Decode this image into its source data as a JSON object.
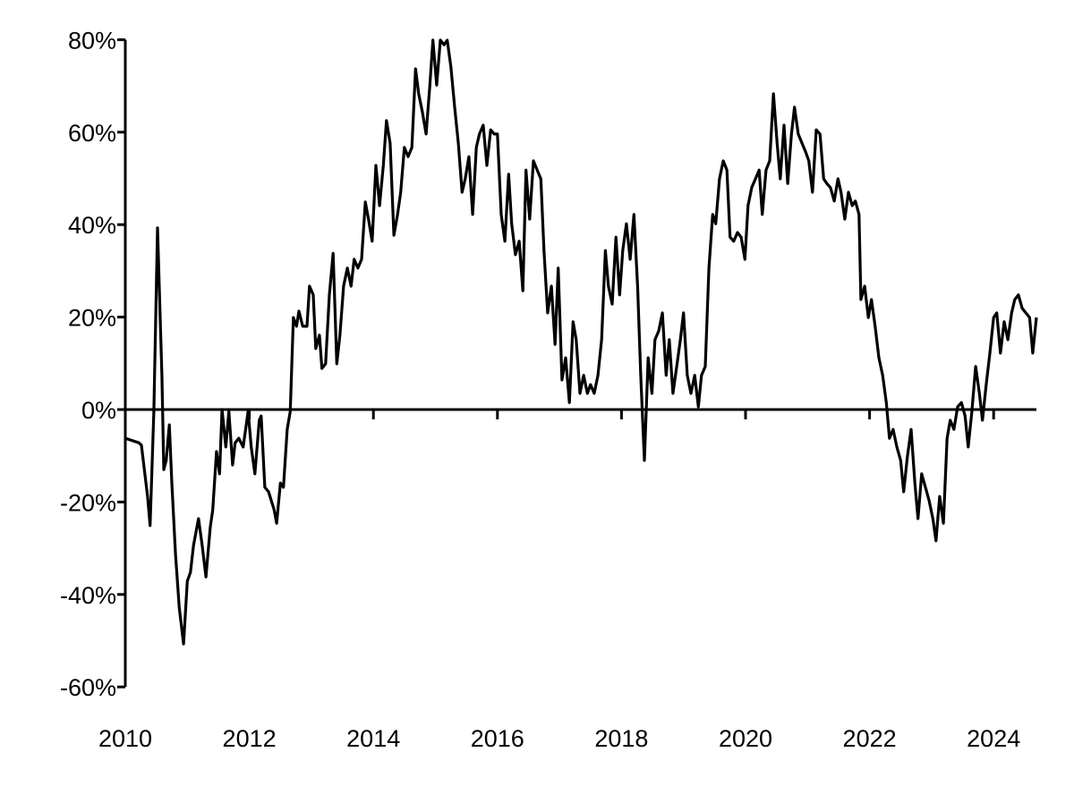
{
  "chart_data": {
    "type": "line",
    "title": "",
    "xlabel": "",
    "ylabel": "",
    "xlim": [
      2010,
      2024.7
    ],
    "ylim": [
      -60,
      80
    ],
    "grid": false,
    "legend": "none",
    "colors": {
      "line": "#000000",
      "axis": "#000000"
    },
    "y_ticks": [
      80,
      60,
      40,
      20,
      0,
      -20,
      -40,
      -60
    ],
    "y_tick_labels": [
      "80%",
      "60%",
      "40%",
      "20%",
      "0%",
      "-20%",
      "-40%",
      "-60%"
    ],
    "x_ticks": [
      2010,
      2012,
      2014,
      2016,
      2018,
      2020,
      2022,
      2024
    ],
    "x_tick_labels": [
      "2010",
      "2012",
      "2014",
      "2016",
      "2018",
      "2020",
      "2022",
      "2024"
    ],
    "series": [
      {
        "x": [
          2010.0,
          2010.22,
          2010.26,
          2010.36,
          2010.4,
          2010.46,
          2010.52,
          2010.59,
          2010.62,
          2010.66,
          2010.71,
          2010.75,
          2010.81,
          2010.87,
          2010.94,
          2011.0,
          2011.05,
          2011.1,
          2011.18,
          2011.24,
          2011.3,
          2011.37,
          2011.41,
          2011.47,
          2011.52,
          2011.56,
          2011.62,
          2011.67,
          2011.73,
          2011.77,
          2011.83,
          2011.9,
          2011.98,
          2012.03,
          2012.09,
          2012.16,
          2012.19,
          2012.25,
          2012.31,
          2012.4,
          2012.44,
          2012.5,
          2012.55,
          2012.61,
          2012.66,
          2012.71,
          2012.76,
          2012.8,
          2012.86,
          2012.93,
          2012.97,
          2013.03,
          2013.07,
          2013.13,
          2013.17,
          2013.23,
          2013.29,
          2013.35,
          2013.41,
          2013.46,
          2013.52,
          2013.58,
          2013.64,
          2013.69,
          2013.75,
          2013.81,
          2013.87,
          2013.92,
          2013.98,
          2014.04,
          2014.1,
          2014.16,
          2014.21,
          2014.27,
          2014.33,
          2014.39,
          2014.44,
          2014.5,
          2014.56,
          2014.62,
          2014.68,
          2014.73,
          2014.79,
          2014.85,
          2014.91,
          2014.96,
          2015.02,
          2015.08,
          2015.14,
          2015.19,
          2015.25,
          2015.31,
          2015.37,
          2015.43,
          2015.48,
          2015.54,
          2015.6,
          2015.66,
          2015.71,
          2015.77,
          2015.83,
          2015.89,
          2015.95,
          2016.0,
          2016.06,
          2016.12,
          2016.18,
          2016.23,
          2016.29,
          2016.35,
          2016.41,
          2016.46,
          2016.52,
          2016.58,
          2016.64,
          2016.7,
          2016.75,
          2016.81,
          2016.87,
          2016.93,
          2016.98,
          2017.04,
          2017.1,
          2017.16,
          2017.22,
          2017.27,
          2017.33,
          2017.39,
          2017.45,
          2017.5,
          2017.56,
          2017.62,
          2017.68,
          2017.74,
          2017.79,
          2017.85,
          2017.91,
          2017.97,
          2018.02,
          2018.08,
          2018.14,
          2018.2,
          2018.26,
          2018.31,
          2018.37,
          2018.43,
          2018.49,
          2018.54,
          2018.6,
          2018.66,
          2018.72,
          2018.77,
          2018.83,
          2018.89,
          2018.95,
          2019.0,
          2019.06,
          2019.12,
          2019.18,
          2019.24,
          2019.29,
          2019.35,
          2019.41,
          2019.47,
          2019.52,
          2019.58,
          2019.64,
          2019.7,
          2019.75,
          2019.81,
          2019.87,
          2019.93,
          2019.99,
          2020.04,
          2020.1,
          2020.16,
          2020.22,
          2020.27,
          2020.33,
          2020.39,
          2020.45,
          2020.51,
          2020.56,
          2020.62,
          2020.68,
          2020.74,
          2020.79,
          2020.85,
          2020.91,
          2020.97,
          2021.02,
          2021.08,
          2021.14,
          2021.2,
          2021.26,
          2021.31,
          2021.37,
          2021.43,
          2021.49,
          2021.54,
          2021.6,
          2021.66,
          2021.72,
          2021.77,
          2021.83,
          2021.86,
          2021.92,
          2021.98,
          2022.03,
          2022.09,
          2022.15,
          2022.21,
          2022.27,
          2022.32,
          2022.38,
          2022.44,
          2022.5,
          2022.55,
          2022.61,
          2022.67,
          2022.73,
          2022.78,
          2022.84,
          2022.9,
          2022.96,
          2023.02,
          2023.07,
          2023.13,
          2023.19,
          2023.25,
          2023.3,
          2023.36,
          2023.42,
          2023.48,
          2023.54,
          2023.59,
          2023.65,
          2023.71,
          2023.77,
          2023.82,
          2023.88,
          2023.94,
          2024.0,
          2024.05,
          2024.11,
          2024.17,
          2024.23,
          2024.29,
          2024.34,
          2024.4,
          2024.46,
          2024.52,
          2024.58,
          2024.63,
          2024.69
        ],
        "y": [
          -6.2,
          -7.2,
          -7.7,
          -18.8,
          -25.1,
          -0.4,
          39.3,
          7.4,
          -13.0,
          -11.0,
          -3.3,
          -15.9,
          -31.3,
          -42.9,
          -50.7,
          -37.1,
          -35.2,
          -29.4,
          -23.6,
          -29.4,
          -36.2,
          -25.5,
          -21.7,
          -9.1,
          -13.9,
          0,
          -8.1,
          -0.4,
          -12.0,
          -7.2,
          -6.2,
          -8.1,
          -0.4,
          -8.1,
          -13.9,
          -2.3,
          -1.4,
          -16.8,
          -17.8,
          -21.7,
          -24.6,
          -15.9,
          -16.8,
          -4.3,
          -0.4,
          19.9,
          18.0,
          21.3,
          18.0,
          18.0,
          26.7,
          24.8,
          13.2,
          16.1,
          8.9,
          9.9,
          24.8,
          33.8,
          9.9,
          16.1,
          26.7,
          30.6,
          26.7,
          32.5,
          30.6,
          32.5,
          44.9,
          41.2,
          36.4,
          52.8,
          44.1,
          52.8,
          62.5,
          57.6,
          37.7,
          42.2,
          47.0,
          56.7,
          54.7,
          56.7,
          73.7,
          68.3,
          64.4,
          59.6,
          70.2,
          79.9,
          70.2,
          79.9,
          78.9,
          79.9,
          74.1,
          65.4,
          57.6,
          47.0,
          49.9,
          54.7,
          42.2,
          56.7,
          59.6,
          61.5,
          52.8,
          60.5,
          59.6,
          59.6,
          42.2,
          36.4,
          50.9,
          40.2,
          33.5,
          36.4,
          25.7,
          51.8,
          41.2,
          53.8,
          51.8,
          49.9,
          34.4,
          20.9,
          26.7,
          14.1,
          30.6,
          6.4,
          11.2,
          1.5,
          19.0,
          15.1,
          3.5,
          7.4,
          3.5,
          5.4,
          3.5,
          7.4,
          15.1,
          34.4,
          26.7,
          22.8,
          37.3,
          24.8,
          34.4,
          40.2,
          32.5,
          42.2,
          26.7,
          7.4,
          -11.0,
          11.2,
          3.5,
          15.1,
          17.0,
          20.9,
          7.4,
          15.1,
          3.5,
          9.3,
          15.1,
          20.9,
          7.4,
          3.5,
          7.4,
          0.6,
          7.4,
          9.3,
          30.6,
          42.2,
          40.2,
          49.9,
          53.8,
          51.8,
          37.3,
          36.4,
          38.3,
          37.3,
          32.5,
          44.1,
          48.0,
          49.9,
          51.8,
          42.2,
          51.8,
          53.8,
          68.3,
          57.6,
          49.9,
          61.5,
          48.9,
          59.6,
          65.4,
          59.6,
          57.6,
          55.7,
          53.8,
          47.0,
          60.5,
          59.6,
          49.9,
          48.9,
          48.0,
          45.1,
          49.9,
          47.0,
          41.2,
          47.0,
          44.1,
          45.1,
          42.2,
          23.8,
          26.7,
          19.9,
          23.8,
          18.0,
          11.2,
          7.4,
          1.5,
          -6.2,
          -4.3,
          -8.1,
          -11.0,
          -17.8,
          -10.1,
          -4.3,
          -15.9,
          -23.6,
          -13.9,
          -16.8,
          -19.7,
          -23.6,
          -28.4,
          -18.8,
          -24.6,
          -6.2,
          -2.3,
          -4.3,
          0.6,
          1.5,
          -1.4,
          -8.1,
          -0.4,
          9.3,
          3.5,
          -2.3,
          5.4,
          12.2,
          19.9,
          20.9,
          12.2,
          19.0,
          15.1,
          20.9,
          23.8,
          24.8,
          21.9,
          20.9,
          19.9,
          12.2,
          19.9
        ]
      }
    ]
  }
}
